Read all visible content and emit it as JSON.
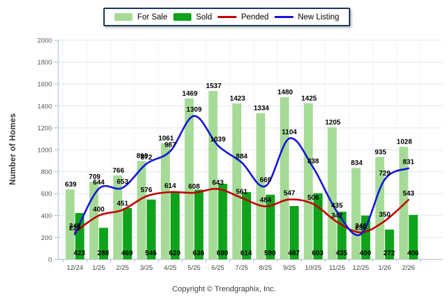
{
  "page": {
    "footer": "Copyright © Trendgraphix, Inc."
  },
  "chart_data": {
    "type": "bar+line combo",
    "title": "",
    "xlabel": "",
    "ylabel": "Number of Homes",
    "ylim": [
      0,
      2000
    ],
    "ytick_step": 200,
    "grid": true,
    "legend_position": "top",
    "categories": [
      "12/24",
      "1/25",
      "2/25",
      "3/25",
      "4/25",
      "5/25",
      "6/25",
      "7/25",
      "8/25",
      "9/25",
      "10/25",
      "11/25",
      "12/25",
      "1/26",
      "2/26"
    ],
    "series": [
      {
        "name": "For Sale",
        "type": "bar",
        "color": "#A6DB97",
        "values": [
          639,
          709,
          766,
          898,
          1061,
          1469,
          1537,
          1423,
          1334,
          1480,
          1425,
          1205,
          834,
          935,
          1028
        ]
      },
      {
        "name": "Sold",
        "type": "bar",
        "color": "#0FA21B",
        "values": [
          423,
          288,
          469,
          546,
          620,
          636,
          690,
          614,
          590,
          487,
          603,
          435,
          400,
          272,
          406
        ]
      },
      {
        "name": "Pended",
        "type": "line",
        "color": "#C00000",
        "values": [
          248,
          400,
          451,
          576,
          614,
          608,
          643,
          561,
          484,
          547,
          506,
          342,
          246,
          350,
          543
        ]
      },
      {
        "name": "New Listing",
        "type": "line",
        "color": "#1414DC",
        "values": [
          229,
          644,
          653,
          872,
          987,
          1309,
          1039,
          884,
          669,
          1104,
          838,
          435,
          230,
          729,
          831
        ]
      }
    ]
  }
}
